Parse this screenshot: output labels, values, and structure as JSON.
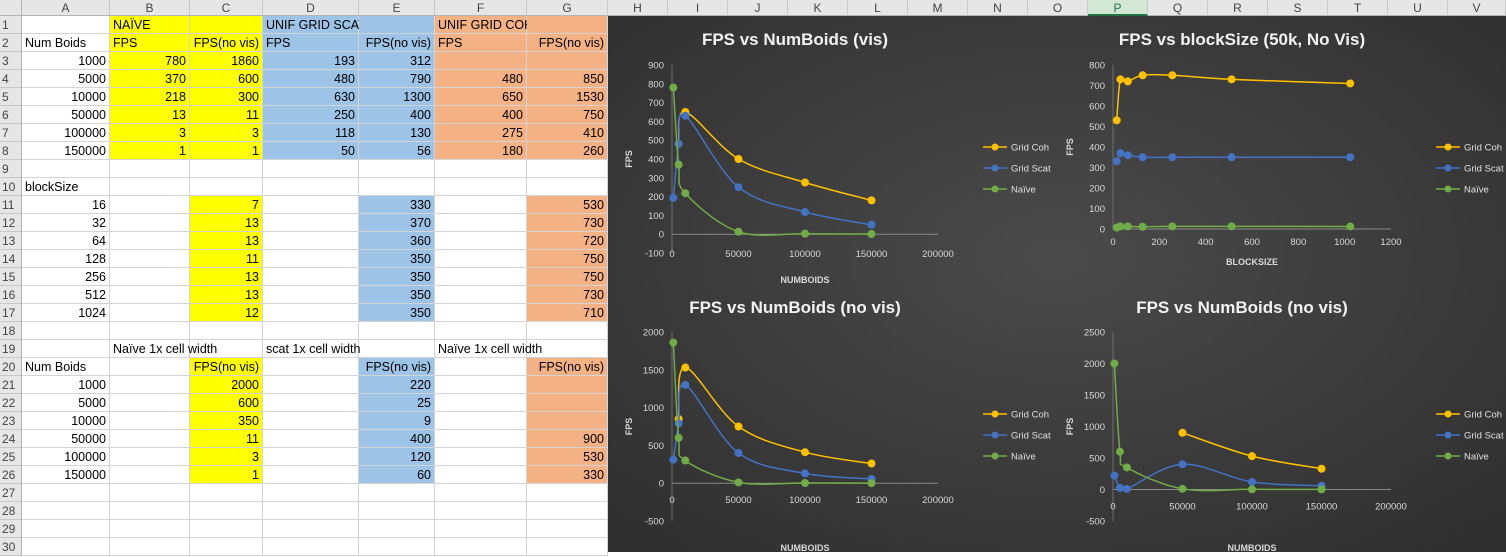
{
  "columns": [
    "A",
    "B",
    "C",
    "D",
    "E",
    "F",
    "G",
    "H",
    "I",
    "J",
    "K",
    "L",
    "M",
    "N",
    "O",
    "P",
    "Q",
    "R",
    "S",
    "T",
    "U",
    "V"
  ],
  "selected_column": "P",
  "rows": [
    "1",
    "2",
    "3",
    "4",
    "5",
    "6",
    "7",
    "8",
    "9",
    "10",
    "11",
    "12",
    "13",
    "14",
    "15",
    "16",
    "17",
    "18",
    "19",
    "20",
    "21",
    "22",
    "23",
    "24",
    "25",
    "26",
    "27",
    "28",
    "29",
    "30"
  ],
  "colors": {
    "yellow": "#ffff00",
    "blue": "#9dc3e6",
    "orange": "#f4b183",
    "chart_bg": "#3b3b3b",
    "coh": "#ffc000",
    "scat": "#4472c4",
    "naive": "#70ad47"
  },
  "cells": [
    {
      "r": 1,
      "c": "B",
      "v": "NAÏVE",
      "fill": "yellow"
    },
    {
      "r": 1,
      "c": "C",
      "v": "",
      "fill": "yellow"
    },
    {
      "r": 1,
      "c": "D",
      "v": "UNIF GRID SCAT",
      "fill": "blue"
    },
    {
      "r": 1,
      "c": "E",
      "v": "",
      "fill": "blue"
    },
    {
      "r": 1,
      "c": "F",
      "v": "UNIF GRID COH",
      "fill": "orange"
    },
    {
      "r": 1,
      "c": "G",
      "v": "",
      "fill": "orange"
    },
    {
      "r": 2,
      "c": "A",
      "v": "Num Boids"
    },
    {
      "r": 2,
      "c": "B",
      "v": "FPS",
      "fill": "yellow"
    },
    {
      "r": 2,
      "c": "C",
      "v": "FPS(no vis)",
      "fill": "yellow",
      "align": "right"
    },
    {
      "r": 2,
      "c": "D",
      "v": "FPS",
      "fill": "blue"
    },
    {
      "r": 2,
      "c": "E",
      "v": "FPS(no vis)",
      "fill": "blue",
      "align": "right"
    },
    {
      "r": 2,
      "c": "F",
      "v": "FPS",
      "fill": "orange"
    },
    {
      "r": 2,
      "c": "G",
      "v": "FPS(no vis)",
      "fill": "orange",
      "align": "right"
    },
    {
      "r": 3,
      "c": "A",
      "v": "1000",
      "num": true
    },
    {
      "r": 3,
      "c": "B",
      "v": "780",
      "fill": "yellow",
      "num": true
    },
    {
      "r": 3,
      "c": "C",
      "v": "1860",
      "fill": "yellow",
      "num": true
    },
    {
      "r": 3,
      "c": "D",
      "v": "193",
      "fill": "blue",
      "num": true
    },
    {
      "r": 3,
      "c": "E",
      "v": "312",
      "fill": "blue",
      "num": true
    },
    {
      "r": 3,
      "c": "F",
      "v": "",
      "fill": "orange"
    },
    {
      "r": 3,
      "c": "G",
      "v": "",
      "fill": "orange"
    },
    {
      "r": 4,
      "c": "A",
      "v": "5000",
      "num": true
    },
    {
      "r": 4,
      "c": "B",
      "v": "370",
      "fill": "yellow",
      "num": true
    },
    {
      "r": 4,
      "c": "C",
      "v": "600",
      "fill": "yellow",
      "num": true
    },
    {
      "r": 4,
      "c": "D",
      "v": "480",
      "fill": "blue",
      "num": true
    },
    {
      "r": 4,
      "c": "E",
      "v": "790",
      "fill": "blue",
      "num": true
    },
    {
      "r": 4,
      "c": "F",
      "v": "480",
      "fill": "orange",
      "num": true
    },
    {
      "r": 4,
      "c": "G",
      "v": "850",
      "fill": "orange",
      "num": true
    },
    {
      "r": 5,
      "c": "A",
      "v": "10000",
      "num": true
    },
    {
      "r": 5,
      "c": "B",
      "v": "218",
      "fill": "yellow",
      "num": true
    },
    {
      "r": 5,
      "c": "C",
      "v": "300",
      "fill": "yellow",
      "num": true
    },
    {
      "r": 5,
      "c": "D",
      "v": "630",
      "fill": "blue",
      "num": true
    },
    {
      "r": 5,
      "c": "E",
      "v": "1300",
      "fill": "blue",
      "num": true
    },
    {
      "r": 5,
      "c": "F",
      "v": "650",
      "fill": "orange",
      "num": true
    },
    {
      "r": 5,
      "c": "G",
      "v": "1530",
      "fill": "orange",
      "num": true
    },
    {
      "r": 6,
      "c": "A",
      "v": "50000",
      "num": true
    },
    {
      "r": 6,
      "c": "B",
      "v": "13",
      "fill": "yellow",
      "num": true
    },
    {
      "r": 6,
      "c": "C",
      "v": "11",
      "fill": "yellow",
      "num": true
    },
    {
      "r": 6,
      "c": "D",
      "v": "250",
      "fill": "blue",
      "num": true
    },
    {
      "r": 6,
      "c": "E",
      "v": "400",
      "fill": "blue",
      "num": true
    },
    {
      "r": 6,
      "c": "F",
      "v": "400",
      "fill": "orange",
      "num": true
    },
    {
      "r": 6,
      "c": "G",
      "v": "750",
      "fill": "orange",
      "num": true
    },
    {
      "r": 7,
      "c": "A",
      "v": "100000",
      "num": true
    },
    {
      "r": 7,
      "c": "B",
      "v": "3",
      "fill": "yellow",
      "num": true
    },
    {
      "r": 7,
      "c": "C",
      "v": "3",
      "fill": "yellow",
      "num": true
    },
    {
      "r": 7,
      "c": "D",
      "v": "118",
      "fill": "blue",
      "num": true
    },
    {
      "r": 7,
      "c": "E",
      "v": "130",
      "fill": "blue",
      "num": true
    },
    {
      "r": 7,
      "c": "F",
      "v": "275",
      "fill": "orange",
      "num": true
    },
    {
      "r": 7,
      "c": "G",
      "v": "410",
      "fill": "orange",
      "num": true
    },
    {
      "r": 8,
      "c": "A",
      "v": "150000",
      "num": true
    },
    {
      "r": 8,
      "c": "B",
      "v": "1",
      "fill": "yellow",
      "num": true
    },
    {
      "r": 8,
      "c": "C",
      "v": "1",
      "fill": "yellow",
      "num": true
    },
    {
      "r": 8,
      "c": "D",
      "v": "50",
      "fill": "blue",
      "num": true
    },
    {
      "r": 8,
      "c": "E",
      "v": "56",
      "fill": "blue",
      "num": true
    },
    {
      "r": 8,
      "c": "F",
      "v": "180",
      "fill": "orange",
      "num": true
    },
    {
      "r": 8,
      "c": "G",
      "v": "260",
      "fill": "orange",
      "num": true
    },
    {
      "r": 10,
      "c": "A",
      "v": "blockSize"
    },
    {
      "r": 11,
      "c": "A",
      "v": "16",
      "num": true
    },
    {
      "r": 11,
      "c": "C",
      "v": "7",
      "fill": "yellow",
      "num": true
    },
    {
      "r": 11,
      "c": "E",
      "v": "330",
      "fill": "blue",
      "num": true
    },
    {
      "r": 11,
      "c": "G",
      "v": "530",
      "fill": "orange",
      "num": true
    },
    {
      "r": 12,
      "c": "A",
      "v": "32",
      "num": true
    },
    {
      "r": 12,
      "c": "C",
      "v": "13",
      "fill": "yellow",
      "num": true
    },
    {
      "r": 12,
      "c": "E",
      "v": "370",
      "fill": "blue",
      "num": true
    },
    {
      "r": 12,
      "c": "G",
      "v": "730",
      "fill": "orange",
      "num": true
    },
    {
      "r": 13,
      "c": "A",
      "v": "64",
      "num": true
    },
    {
      "r": 13,
      "c": "C",
      "v": "13",
      "fill": "yellow",
      "num": true
    },
    {
      "r": 13,
      "c": "E",
      "v": "360",
      "fill": "blue",
      "num": true
    },
    {
      "r": 13,
      "c": "G",
      "v": "720",
      "fill": "orange",
      "num": true
    },
    {
      "r": 14,
      "c": "A",
      "v": "128",
      "num": true
    },
    {
      "r": 14,
      "c": "C",
      "v": "11",
      "fill": "yellow",
      "num": true
    },
    {
      "r": 14,
      "c": "E",
      "v": "350",
      "fill": "blue",
      "num": true
    },
    {
      "r": 14,
      "c": "G",
      "v": "750",
      "fill": "orange",
      "num": true
    },
    {
      "r": 15,
      "c": "A",
      "v": "256",
      "num": true
    },
    {
      "r": 15,
      "c": "C",
      "v": "13",
      "fill": "yellow",
      "num": true
    },
    {
      "r": 15,
      "c": "E",
      "v": "350",
      "fill": "blue",
      "num": true
    },
    {
      "r": 15,
      "c": "G",
      "v": "750",
      "fill": "orange",
      "num": true
    },
    {
      "r": 16,
      "c": "A",
      "v": "512",
      "num": true
    },
    {
      "r": 16,
      "c": "C",
      "v": "13",
      "fill": "yellow",
      "num": true
    },
    {
      "r": 16,
      "c": "E",
      "v": "350",
      "fill": "blue",
      "num": true
    },
    {
      "r": 16,
      "c": "G",
      "v": "730",
      "fill": "orange",
      "num": true
    },
    {
      "r": 17,
      "c": "A",
      "v": "1024",
      "num": true
    },
    {
      "r": 17,
      "c": "C",
      "v": "12",
      "fill": "yellow",
      "num": true
    },
    {
      "r": 17,
      "c": "E",
      "v": "350",
      "fill": "blue",
      "num": true
    },
    {
      "r": 17,
      "c": "G",
      "v": "710",
      "fill": "orange",
      "num": true
    },
    {
      "r": 19,
      "c": "B",
      "v": "Naïve 1x cell width"
    },
    {
      "r": 19,
      "c": "D",
      "v": "scat 1x cell width"
    },
    {
      "r": 19,
      "c": "F",
      "v": "Naïve 1x cell width"
    },
    {
      "r": 20,
      "c": "A",
      "v": "Num Boids"
    },
    {
      "r": 20,
      "c": "C",
      "v": "FPS(no vis)",
      "fill": "yellow",
      "align": "right"
    },
    {
      "r": 20,
      "c": "E",
      "v": "FPS(no vis)",
      "fill": "blue",
      "align": "right"
    },
    {
      "r": 20,
      "c": "G",
      "v": "FPS(no vis)",
      "fill": "orange",
      "align": "right"
    },
    {
      "r": 21,
      "c": "A",
      "v": "1000",
      "num": true
    },
    {
      "r": 21,
      "c": "C",
      "v": "2000",
      "fill": "yellow",
      "num": true
    },
    {
      "r": 21,
      "c": "E",
      "v": "220",
      "fill": "blue",
      "num": true
    },
    {
      "r": 21,
      "c": "G",
      "v": "",
      "fill": "orange"
    },
    {
      "r": 22,
      "c": "A",
      "v": "5000",
      "num": true
    },
    {
      "r": 22,
      "c": "C",
      "v": "600",
      "fill": "yellow",
      "num": true
    },
    {
      "r": 22,
      "c": "E",
      "v": "25",
      "fill": "blue",
      "num": true
    },
    {
      "r": 22,
      "c": "G",
      "v": "",
      "fill": "orange"
    },
    {
      "r": 23,
      "c": "A",
      "v": "10000",
      "num": true
    },
    {
      "r": 23,
      "c": "C",
      "v": "350",
      "fill": "yellow",
      "num": true
    },
    {
      "r": 23,
      "c": "E",
      "v": "9",
      "fill": "blue",
      "num": true
    },
    {
      "r": 23,
      "c": "G",
      "v": "",
      "fill": "orange"
    },
    {
      "r": 24,
      "c": "A",
      "v": "50000",
      "num": true
    },
    {
      "r": 24,
      "c": "C",
      "v": "11",
      "fill": "yellow",
      "num": true
    },
    {
      "r": 24,
      "c": "E",
      "v": "400",
      "fill": "blue",
      "num": true
    },
    {
      "r": 24,
      "c": "G",
      "v": "900",
      "fill": "orange",
      "num": true
    },
    {
      "r": 25,
      "c": "A",
      "v": "100000",
      "num": true
    },
    {
      "r": 25,
      "c": "C",
      "v": "3",
      "fill": "yellow",
      "num": true
    },
    {
      "r": 25,
      "c": "E",
      "v": "120",
      "fill": "blue",
      "num": true
    },
    {
      "r": 25,
      "c": "G",
      "v": "530",
      "fill": "orange",
      "num": true
    },
    {
      "r": 26,
      "c": "A",
      "v": "150000",
      "num": true
    },
    {
      "r": 26,
      "c": "C",
      "v": "1",
      "fill": "yellow",
      "num": true
    },
    {
      "r": 26,
      "c": "E",
      "v": "60",
      "fill": "blue",
      "num": true
    },
    {
      "r": 26,
      "c": "G",
      "v": "330",
      "fill": "orange",
      "num": true
    }
  ],
  "chart_data": [
    {
      "type": "scatter",
      "title": "FPS vs NumBoids (vis)",
      "xlabel": "NUMBOIDS",
      "ylabel": "FPS",
      "xlim": [
        0,
        200000
      ],
      "ylim": [
        -100,
        900
      ],
      "xticks": [
        0,
        50000,
        100000,
        150000,
        200000
      ],
      "yticks": [
        -100,
        0,
        100,
        200,
        300,
        400,
        500,
        600,
        700,
        800,
        900
      ],
      "legend": "right",
      "series": [
        {
          "name": "Grid Coh",
          "color": "#ffc000",
          "x": [
            5000,
            10000,
            50000,
            100000,
            150000
          ],
          "y": [
            480,
            650,
            400,
            275,
            180
          ]
        },
        {
          "name": "Grid Scat",
          "color": "#4472c4",
          "x": [
            1000,
            5000,
            10000,
            50000,
            100000,
            150000
          ],
          "y": [
            193,
            480,
            630,
            250,
            118,
            50
          ]
        },
        {
          "name": "Naïve",
          "color": "#70ad47",
          "x": [
            1000,
            5000,
            10000,
            50000,
            100000,
            150000
          ],
          "y": [
            780,
            370,
            218,
            13,
            3,
            1
          ]
        }
      ]
    },
    {
      "type": "scatter",
      "title": "FPS vs blockSize (50k, No Vis)",
      "xlabel": "BLOCKSIZE",
      "ylabel": "FPS",
      "xlim": [
        0,
        1200
      ],
      "ylim": [
        0,
        800
      ],
      "xticks": [
        0,
        200,
        400,
        600,
        800,
        1000,
        1200
      ],
      "yticks": [
        0,
        100,
        200,
        300,
        400,
        500,
        600,
        700,
        800
      ],
      "legend": "right",
      "series": [
        {
          "name": "Grid Coh",
          "color": "#ffc000",
          "x": [
            16,
            32,
            64,
            128,
            256,
            512,
            1024
          ],
          "y": [
            530,
            730,
            720,
            750,
            750,
            730,
            710
          ]
        },
        {
          "name": "Grid Scat",
          "color": "#4472c4",
          "x": [
            16,
            32,
            64,
            128,
            256,
            512,
            1024
          ],
          "y": [
            330,
            370,
            360,
            350,
            350,
            350,
            350
          ]
        },
        {
          "name": "Naïve",
          "color": "#70ad47",
          "x": [
            16,
            32,
            64,
            128,
            256,
            512,
            1024
          ],
          "y": [
            7,
            13,
            13,
            11,
            13,
            13,
            12
          ]
        }
      ]
    },
    {
      "type": "scatter",
      "title": "FPS vs NumBoids (no vis)",
      "xlabel": "NUMBOIDS",
      "ylabel": "FPS",
      "xlim": [
        0,
        200000
      ],
      "ylim": [
        -500,
        2000
      ],
      "xticks": [
        0,
        50000,
        100000,
        150000,
        200000
      ],
      "yticks": [
        -500,
        0,
        500,
        1000,
        1500,
        2000
      ],
      "legend": "right",
      "series": [
        {
          "name": "Grid Coh",
          "color": "#ffc000",
          "x": [
            5000,
            10000,
            50000,
            100000,
            150000
          ],
          "y": [
            850,
            1530,
            750,
            410,
            260
          ]
        },
        {
          "name": "Grid Scat",
          "color": "#4472c4",
          "x": [
            1000,
            5000,
            10000,
            50000,
            100000,
            150000
          ],
          "y": [
            312,
            790,
            1300,
            400,
            130,
            56
          ]
        },
        {
          "name": "Naïve",
          "color": "#70ad47",
          "x": [
            1000,
            5000,
            10000,
            50000,
            100000,
            150000
          ],
          "y": [
            1860,
            600,
            300,
            11,
            3,
            1
          ]
        }
      ]
    },
    {
      "type": "scatter",
      "title": "FPS vs NumBoids (no vis)",
      "xlabel": "NUMBOIDS",
      "ylabel": "FPS",
      "xlim": [
        0,
        200000
      ],
      "ylim": [
        -500,
        2500
      ],
      "xticks": [
        0,
        50000,
        100000,
        150000,
        200000
      ],
      "yticks": [
        -500,
        0,
        500,
        1000,
        1500,
        2000,
        2500
      ],
      "legend": "right",
      "series": [
        {
          "name": "Grid Coh",
          "color": "#ffc000",
          "x": [
            50000,
            100000,
            150000
          ],
          "y": [
            900,
            530,
            330
          ]
        },
        {
          "name": "Grid Scat",
          "color": "#4472c4",
          "x": [
            1000,
            5000,
            10000,
            50000,
            100000,
            150000
          ],
          "y": [
            220,
            25,
            9,
            400,
            120,
            60
          ]
        },
        {
          "name": "Naïve",
          "color": "#70ad47",
          "x": [
            1000,
            5000,
            10000,
            50000,
            100000,
            150000
          ],
          "y": [
            2000,
            600,
            350,
            11,
            3,
            1
          ]
        }
      ]
    }
  ]
}
